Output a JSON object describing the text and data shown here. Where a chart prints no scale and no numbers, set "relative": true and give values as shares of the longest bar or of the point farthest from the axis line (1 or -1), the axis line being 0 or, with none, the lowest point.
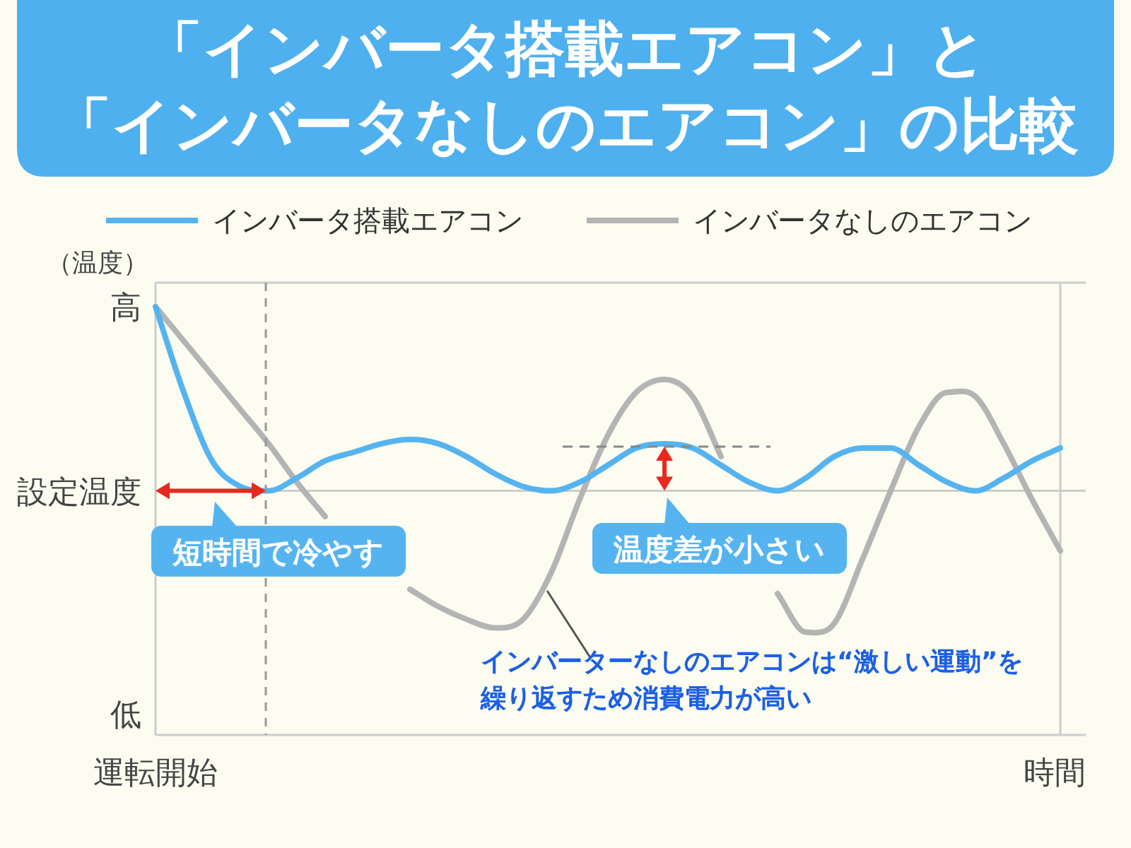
{
  "chart_data": {
    "type": "line",
    "relative": true,
    "title": "「インバータ搭載エアコン」と「インバータなしのエアコン」の比較",
    "xlabel": "時間",
    "ylabel": "（温度）",
    "categories": [
      null,
      null,
      null,
      null,
      null,
      null,
      null,
      null,
      null,
      null,
      null,
      null,
      null,
      null,
      null,
      null,
      null,
      null,
      null,
      null,
      null,
      null,
      null,
      null,
      null,
      null,
      null,
      null,
      null,
      null,
      null,
      null,
      null
    ],
    "ref_lines": [
      {
        "axis": "y",
        "value": 0.57,
        "color": "#cccccc",
        "label": "設定温度"
      }
    ],
    "legend": "top",
    "marker": "none",
    "line_style": "solid",
    "series": [
      {
        "name": "インバータ搭載エアコン",
        "color": "#55b4f0",
        "values": [
          1.0,
          0.8,
          0.64,
          0.58,
          0.57,
          0.6,
          0.64,
          0.66,
          0.68,
          0.69,
          0.68,
          0.65,
          0.61,
          0.58,
          0.57,
          0.59,
          0.63,
          0.67,
          0.68,
          0.67,
          0.63,
          0.59,
          0.57,
          0.6,
          0.65,
          0.67,
          0.67,
          0.63,
          0.59,
          0.57,
          0.6,
          0.64,
          0.67
        ]
      },
      {
        "name": "インバータなしのエアコン",
        "color": "#b4b4b4",
        "values": [
          1.0,
          0.92,
          0.84,
          0.76,
          0.68,
          0.59,
          0.51,
          null,
          null,
          0.34,
          0.3,
          0.27,
          0.25,
          0.27,
          0.38,
          0.55,
          0.7,
          0.8,
          0.83,
          0.79,
          0.65,
          null,
          0.33,
          0.24,
          0.26,
          0.41,
          0.57,
          0.72,
          0.8,
          0.79,
          0.68,
          0.55,
          0.43
        ]
      }
    ],
    "annotations": [
      "高",
      "低",
      "運転開始",
      "短時間で冷やす",
      "温度差が小さい",
      "インバーターなしのエアコンは“激しい運動”を繰り返すため消費電力が高い"
    ]
  }
}
